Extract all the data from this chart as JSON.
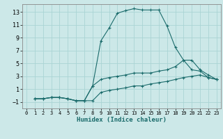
{
  "title": "",
  "xlabel": "Humidex (Indice chaleur)",
  "bg_color": "#cce8e8",
  "grid_color": "#aad4d4",
  "line_color": "#1a6b6b",
  "xlim": [
    -0.5,
    23.5
  ],
  "ylim": [
    -2.0,
    14.2
  ],
  "xticks": [
    0,
    1,
    2,
    3,
    4,
    5,
    6,
    7,
    8,
    9,
    10,
    11,
    12,
    13,
    14,
    15,
    16,
    17,
    18,
    19,
    20,
    21,
    22,
    23
  ],
  "yticks": [
    -1,
    1,
    3,
    5,
    7,
    9,
    11,
    13
  ],
  "series": [
    {
      "x": [
        1,
        2,
        3,
        4,
        5,
        6,
        7,
        8,
        9,
        10,
        11,
        12,
        13,
        14,
        15,
        16,
        17,
        18,
        19,
        20,
        21,
        22,
        23
      ],
      "y": [
        -0.5,
        -0.5,
        -0.3,
        -0.3,
        -0.5,
        -0.8,
        -0.8,
        1.5,
        8.5,
        10.5,
        12.8,
        13.2,
        13.5,
        13.3,
        13.3,
        13.3,
        10.8,
        7.5,
        5.5,
        4.0,
        3.8,
        2.8,
        2.5
      ]
    },
    {
      "x": [
        1,
        2,
        3,
        4,
        5,
        6,
        7,
        8,
        9,
        10,
        11,
        12,
        13,
        14,
        15,
        16,
        17,
        18,
        19,
        20,
        21,
        22,
        23
      ],
      "y": [
        -0.5,
        -0.5,
        -0.3,
        -0.3,
        -0.5,
        -0.8,
        -0.8,
        1.5,
        2.5,
        2.8,
        3.0,
        3.2,
        3.5,
        3.5,
        3.5,
        3.8,
        4.0,
        4.5,
        5.5,
        5.5,
        4.0,
        3.2,
        2.5
      ]
    },
    {
      "x": [
        1,
        2,
        3,
        4,
        5,
        6,
        7,
        8,
        9,
        10,
        11,
        12,
        13,
        14,
        15,
        16,
        17,
        18,
        19,
        20,
        21,
        22,
        23
      ],
      "y": [
        -0.5,
        -0.5,
        -0.3,
        -0.3,
        -0.5,
        -0.8,
        -0.8,
        -0.8,
        0.5,
        0.8,
        1.0,
        1.2,
        1.5,
        1.5,
        1.8,
        2.0,
        2.2,
        2.5,
        2.8,
        3.0,
        3.2,
        2.8,
        2.5
      ]
    }
  ]
}
